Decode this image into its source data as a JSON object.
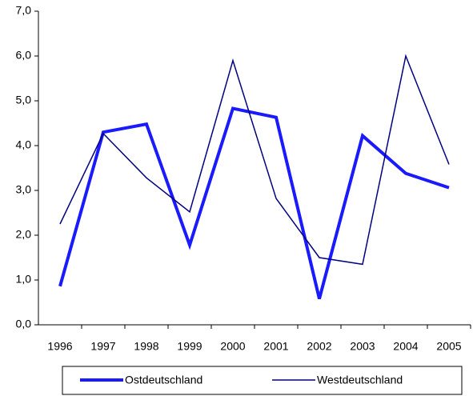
{
  "chart_data": {
    "type": "line",
    "categories": [
      "1996",
      "1997",
      "1998",
      "1999",
      "2000",
      "2001",
      "2002",
      "2003",
      "2004",
      "2005"
    ],
    "series": [
      {
        "name": "Ostdeutschland",
        "color": "#1a1aff",
        "values": [
          0.86,
          4.3,
          4.48,
          1.78,
          4.83,
          4.63,
          0.58,
          4.22,
          3.38,
          3.06
        ]
      },
      {
        "name": "Westdeutschland",
        "color": "#000080",
        "values": [
          2.25,
          4.27,
          3.28,
          2.52,
          5.9,
          2.82,
          1.5,
          1.35,
          6.0,
          3.58
        ]
      }
    ],
    "ylim": [
      0,
      7
    ],
    "yticks": [
      {
        "value": 0,
        "label": "0,0"
      },
      {
        "value": 1,
        "label": "1,0"
      },
      {
        "value": 2,
        "label": "2,0"
      },
      {
        "value": 3,
        "label": "3,0"
      },
      {
        "value": 4,
        "label": "4,0"
      },
      {
        "value": 5,
        "label": "5,0"
      },
      {
        "value": 6,
        "label": "6,0"
      },
      {
        "value": 7,
        "label": "7,0"
      }
    ],
    "legend": "bottom"
  }
}
